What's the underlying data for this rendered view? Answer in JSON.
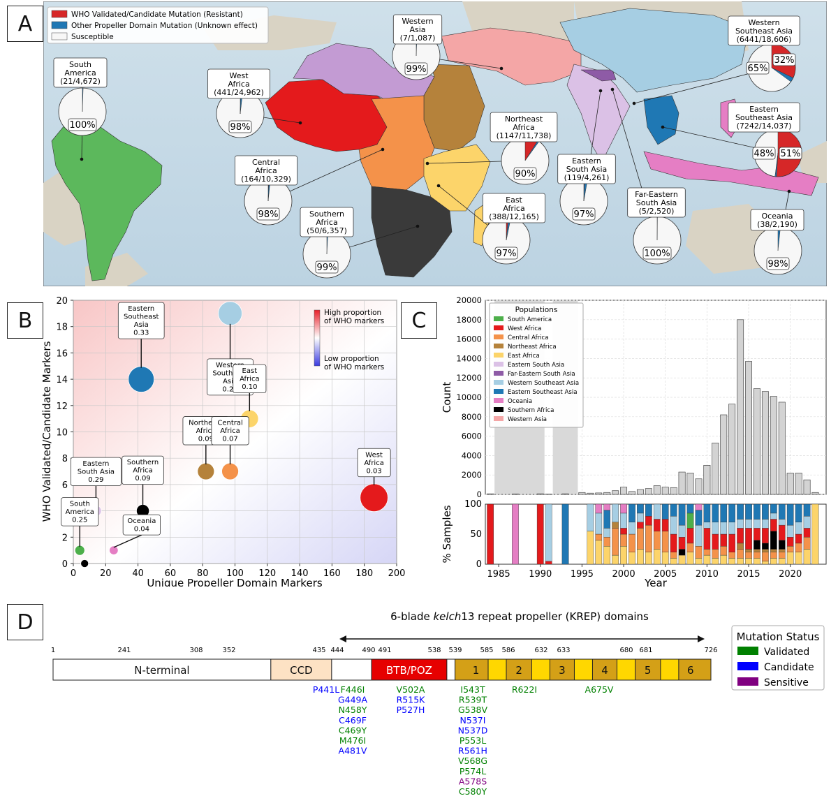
{
  "panels": {
    "a": "A",
    "b": "B",
    "c": "C",
    "d": "D"
  },
  "map": {
    "legend": [
      {
        "label": "WHO Validated/Candidate Mutation (Resistant)",
        "color": "#d62728"
      },
      {
        "label": "Other Propeller Domain Mutation (Unknown effect)",
        "color": "#1f77b4"
      },
      {
        "label": "Susceptible",
        "color": "#f7f7f7"
      }
    ],
    "regions": [
      {
        "name": [
          "South",
          "America"
        ],
        "count": "(21/4,672)",
        "pct": "100%",
        "red": 0.0,
        "blue": 0.005,
        "color": "#4daf4a"
      },
      {
        "name": [
          "West",
          "Africa"
        ],
        "count": "(441/24,962)",
        "pct": "98%",
        "red": 0.003,
        "blue": 0.015,
        "color": "#e41a1c"
      },
      {
        "name": [
          "Western",
          "Asia"
        ],
        "count": "(7/1,087)",
        "pct": "99%",
        "red": 0.0,
        "blue": 0.006,
        "color": "#f4a6a6"
      },
      {
        "name": [
          "Western",
          "Southeast Asia"
        ],
        "count": "(6441/18,606)",
        "pct": "65%",
        "pct2": "32%",
        "red": 0.32,
        "blue": 0.03,
        "color": "#a6cee3"
      },
      {
        "name": [
          "Northeast",
          "Africa"
        ],
        "count": "(1147/11,738)",
        "pct": "90%",
        "red": 0.09,
        "blue": 0.01,
        "color": "#b5823b"
      },
      {
        "name": [
          "Eastern",
          "Southeast Asia"
        ],
        "count": "(7242/14,037)",
        "pct": "48%",
        "pct2": "51%",
        "red": 0.51,
        "blue": 0.01,
        "color": "#1f78b4"
      },
      {
        "name": [
          "Central",
          "Africa"
        ],
        "count": "(164/10,329)",
        "pct": "98%",
        "red": 0.004,
        "blue": 0.012,
        "color": "#f4924a"
      },
      {
        "name": [
          "Eastern",
          "South Asia"
        ],
        "count": "(119/4,261)",
        "pct": "97%",
        "red": 0.005,
        "blue": 0.022,
        "color": "#dbc1e6"
      },
      {
        "name": [
          "Southern",
          "Africa"
        ],
        "count": "(50/6,357)",
        "pct": "99%",
        "red": 0.0,
        "blue": 0.008,
        "color": "#3a3a3a"
      },
      {
        "name": [
          "East",
          "Africa"
        ],
        "count": "(388/12,165)",
        "pct": "97%",
        "red": 0.015,
        "blue": 0.017,
        "color": "#fcd46a"
      },
      {
        "name": [
          "Far-Eastern",
          "South Asia"
        ],
        "count": "(5/2,520)",
        "pct": "100%",
        "red": 0.0,
        "blue": 0.002,
        "color": "#8e5ba6"
      },
      {
        "name": [
          "Oceania"
        ],
        "count": "(38/2,190)",
        "pct": "98%",
        "red": 0.0,
        "blue": 0.017,
        "color": "#e57ec4"
      }
    ]
  },
  "chart_data": [
    {
      "type": "scatter",
      "xlabel": "Unique Propeller Domain Markers",
      "ylabel": "WHO Validated/Candidate Markers",
      "xlim": [
        0,
        200
      ],
      "ylim": [
        0,
        20
      ],
      "xticks": [
        0,
        20,
        40,
        60,
        80,
        100,
        120,
        140,
        160,
        180,
        200
      ],
      "yticks": [
        0,
        2,
        4,
        6,
        8,
        10,
        12,
        14,
        16,
        18,
        20
      ],
      "colorbar": {
        "high": "High proportion of WHO markers",
        "low": "Low proportion of WHO markers"
      },
      "points": [
        {
          "name": [
            "Eastern",
            "Southeast",
            "Asia"
          ],
          "value": "0.33",
          "x": 42,
          "y": 14,
          "size": 23,
          "color": "#1f78b4"
        },
        {
          "name": [
            "Western",
            "Southeast",
            "Asia"
          ],
          "value": "0.20",
          "x": 97,
          "y": 19,
          "size": 21,
          "color": "#a6cee3"
        },
        {
          "name": [
            "East",
            "Africa"
          ],
          "value": "0.10",
          "x": 109,
          "y": 11,
          "size": 15,
          "color": "#fcd46a"
        },
        {
          "name": [
            "Northeast",
            "Africa"
          ],
          "value": "0.09",
          "x": 82,
          "y": 7,
          "size": 14,
          "color": "#b5823b"
        },
        {
          "name": [
            "Central",
            "Africa"
          ],
          "value": "0.07",
          "x": 97,
          "y": 7,
          "size": 14,
          "color": "#f4924a"
        },
        {
          "name": [
            "West",
            "Africa"
          ],
          "value": "0.03",
          "x": 186,
          "y": 5,
          "size": 25,
          "color": "#e41a1c"
        },
        {
          "name": [
            "Eastern",
            "South Asia"
          ],
          "value": "0.29",
          "x": 14,
          "y": 4,
          "size": 8,
          "color": "#dbc1e6"
        },
        {
          "name": [
            "Southern",
            "Africa"
          ],
          "value": "0.09",
          "x": 43,
          "y": 4,
          "size": 10,
          "color": "#000000"
        },
        {
          "name": [
            "South",
            "America"
          ],
          "value": "0.25",
          "x": 4,
          "y": 1,
          "size": 7,
          "color": "#4daf4a"
        },
        {
          "name": [
            "Oceania"
          ],
          "value": "0.04",
          "x": 25,
          "y": 1,
          "size": 6,
          "color": "#e57ec4"
        },
        {
          "name": [],
          "value": "",
          "x": 7,
          "y": 0,
          "size": 5,
          "color": "#000000"
        }
      ]
    },
    {
      "type": "bar",
      "ylabel": "Count",
      "ylim": [
        0,
        20000
      ],
      "yticks": [
        0,
        2000,
        4000,
        6000,
        8000,
        10000,
        12000,
        14000,
        16000,
        18000,
        20000
      ],
      "xlabel": "Year",
      "xticks": [
        1985,
        1990,
        1995,
        2000,
        2005,
        2010,
        2015,
        2020
      ],
      "years": [
        1984,
        1985,
        1986,
        1987,
        1988,
        1989,
        1990,
        1991,
        1992,
        1993,
        1994,
        1995,
        1996,
        1997,
        1998,
        1999,
        2000,
        2001,
        2002,
        2003,
        2004,
        2005,
        2006,
        2007,
        2008,
        2009,
        2010,
        2011,
        2012,
        2013,
        2014,
        2015,
        2016,
        2017,
        2018,
        2019,
        2020,
        2021,
        2022,
        2023
      ],
      "values": [
        60,
        0,
        0,
        40,
        0,
        0,
        60,
        30,
        0,
        60,
        0,
        200,
        130,
        150,
        200,
        380,
        750,
        300,
        500,
        600,
        900,
        750,
        700,
        2300,
        2200,
        1600,
        3000,
        5300,
        8200,
        9300,
        18000,
        13700,
        10900,
        10600,
        10100,
        9500,
        2200,
        2200,
        1500,
        200
      ],
      "shaded_years": [
        [
          1984.5,
          1990.5
        ],
        [
          1991.5,
          1994.5
        ]
      ],
      "legend_title": "Populations",
      "populations": [
        {
          "name": "South America",
          "color": "#4daf4a"
        },
        {
          "name": "West Africa",
          "color": "#e41a1c"
        },
        {
          "name": "Central Africa",
          "color": "#f4924a"
        },
        {
          "name": "Northeast Africa",
          "color": "#b5823b"
        },
        {
          "name": "East Africa",
          "color": "#fcd46a"
        },
        {
          "name": "Eastern South Asia",
          "color": "#dbc1e6"
        },
        {
          "name": "Far-Eastern South Asia",
          "color": "#8e5ba6"
        },
        {
          "name": "Western Southeast Asia",
          "color": "#a6cee3"
        },
        {
          "name": "Eastern Southeast Asia",
          "color": "#1f78b4"
        },
        {
          "name": "Oceania",
          "color": "#e57ec4"
        },
        {
          "name": "Southern Africa",
          "color": "#000000"
        },
        {
          "name": "Western Asia",
          "color": "#f4a6a6"
        }
      ]
    },
    {
      "type": "bar",
      "stacked": true,
      "ylabel": "% Samples",
      "ylim": [
        0,
        100
      ],
      "yticks": [
        0,
        50,
        100
      ],
      "years": [
        1984,
        1987,
        1990,
        1991,
        1993,
        1996,
        1997,
        1998,
        1999,
        2000,
        2001,
        2002,
        2003,
        2004,
        2005,
        2006,
        2007,
        2008,
        2009,
        2010,
        2011,
        2012,
        2013,
        2014,
        2015,
        2016,
        2017,
        2018,
        2019,
        2020,
        2021,
        2022,
        2023
      ],
      "shares": [
        {
          "West Africa": 100
        },
        {
          "Oceania": 100
        },
        {
          "West Africa": 100
        },
        {
          "West Africa": 5,
          "Western Southeast Asia": 95
        },
        {
          "Eastern Southeast Asia": 100
        },
        {
          "East Africa": 55,
          "Western Southeast Asia": 45
        },
        {
          "East Africa": 40,
          "Central Africa": 10,
          "Western Southeast Asia": 35,
          "Oceania": 15
        },
        {
          "East Africa": 30,
          "Central Africa": 15,
          "Eastern Southeast Asia": 30,
          "Western Southeast Asia": 15,
          "Oceania": 10
        },
        {
          "East Africa": 15,
          "Central Africa": 45,
          "Northeast Africa": 10,
          "Western Southeast Asia": 30
        },
        {
          "East Africa": 30,
          "Central Africa": 20,
          "West Africa": 10,
          "Western Southeast Asia": 25,
          "Oceania": 15
        },
        {
          "East Africa": 20,
          "Central Africa": 30,
          "Eastern Southeast Asia": 30,
          "Western Southeast Asia": 20
        },
        {
          "East Africa": 25,
          "Central Africa": 35,
          "West Africa": 10,
          "Western Southeast Asia": 15,
          "Eastern Southeast Asia": 15
        },
        {
          "East Africa": 20,
          "Central Africa": 45,
          "West Africa": 15,
          "Eastern Southeast Asia": 20
        },
        {
          "East Africa": 25,
          "Central Africa": 30,
          "West Africa": 20,
          "Western Southeast Asia": 25
        },
        {
          "East Africa": 20,
          "Central Africa": 35,
          "West Africa": 20,
          "Eastern Southeast Asia": 25
        },
        {
          "East Africa": 10,
          "Central Africa": 10,
          "West Africa": 30,
          "Western Southeast Asia": 30,
          "Eastern Southeast Asia": 20
        },
        {
          "East Africa": 15,
          "Southern Africa": 10,
          "West Africa": 20,
          "Eastern Southeast Asia": 35,
          "Western Southeast Asia": 20
        },
        {
          "East Africa": 20,
          "Central Africa": 15,
          "West Africa": 25,
          "Eastern Southeast Asia": 15,
          "South America": 25
        },
        {
          "East Africa": 10,
          "Central Africa": 20,
          "Western Southeast Asia": 35,
          "Eastern Southeast Asia": 25,
          "Oceania": 10
        },
        {
          "East Africa": 15,
          "Central Africa": 10,
          "West Africa": 35,
          "Eastern Southeast Asia": 30,
          "Western Southeast Asia": 10
        },
        {
          "East Africa": 10,
          "Central Africa": 15,
          "West Africa": 25,
          "Eastern Southeast Asia": 30,
          "Western Southeast Asia": 20
        },
        {
          "East Africa": 15,
          "Central Africa": 15,
          "West Africa": 20,
          "Eastern Southeast Asia": 30,
          "Western Southeast Asia": 20
        },
        {
          "East Africa": 10,
          "Central Africa": 10,
          "West Africa": 30,
          "Eastern Southeast Asia": 30,
          "Western Southeast Asia": 20
        },
        {
          "East Africa": 10,
          "Central Africa": 15,
          "Northeast Africa": 10,
          "West Africa": 25,
          "Eastern Southeast Asia": 25,
          "Western Southeast Asia": 15
        },
        {
          "East Africa": 10,
          "Central Africa": 10,
          "Northeast Africa": 5,
          "West Africa": 35,
          "Eastern Southeast Asia": 25,
          "Western Southeast Asia": 15
        },
        {
          "East Africa": 10,
          "Central Africa": 10,
          "Northeast Africa": 5,
          "West Africa": 20,
          "Southern Africa": 15,
          "Eastern Southeast Asia": 25,
          "Western Southeast Asia": 15
        },
        {
          "East Africa": 5,
          "Central Africa": 15,
          "Northeast Africa": 5,
          "West Africa": 25,
          "Southern Africa": 10,
          "Eastern Southeast Asia": 25,
          "Western Southeast Asia": 15
        },
        {
          "East Africa": 10,
          "Central Africa": 10,
          "Northeast Africa": 5,
          "West Africa": 20,
          "Southern Africa": 30,
          "Eastern Southeast Asia": 15,
          "Western Southeast Asia": 10
        },
        {
          "East Africa": 10,
          "Central Africa": 10,
          "Northeast Africa": 5,
          "West Africa": 25,
          "Southern Africa": 15,
          "Eastern Southeast Asia": 25,
          "Western Southeast Asia": 10
        },
        {
          "East Africa": 20,
          "Central Africa": 10,
          "West Africa": 15,
          "Eastern Southeast Asia": 35,
          "Western Southeast Asia": 20
        },
        {
          "East Africa": 20,
          "Central Africa": 15,
          "West Africa": 15,
          "Eastern Southeast Asia": 30,
          "Western Southeast Asia": 20
        },
        {
          "East Africa": 25,
          "Central Africa": 20,
          "West Africa": 15,
          "Eastern Southeast Asia": 20,
          "Western Southeast Asia": 20
        },
        {
          "East Africa": 100
        }
      ]
    }
  ],
  "domain": {
    "title_prefix": "6-blade ",
    "title_italic": "kelch",
    "title_suffix": "13 repeat propeller (KREP) domains",
    "positions": [
      "1",
      "241",
      "308",
      "352",
      "435",
      "444",
      "490",
      "491",
      "538",
      "539",
      "585",
      "586",
      "632",
      "633",
      "680",
      "681",
      "726"
    ],
    "segments": [
      {
        "label": "N-terminal",
        "start": 1,
        "end": 241,
        "color": "#ffffff"
      },
      {
        "label": "CCD",
        "start": 241,
        "end": 308,
        "color": "#fde2c4"
      },
      {
        "label": "",
        "start": 308,
        "end": 352,
        "color": "#ffffff"
      },
      {
        "label": "BTB/POZ",
        "start": 352,
        "end": 435,
        "color": "#e60000"
      },
      {
        "label": "",
        "start": 435,
        "end": 444,
        "color": "#ffffff"
      },
      {
        "label": "1",
        "start": 444,
        "end": 490,
        "color": "#d4a017"
      },
      {
        "label": "",
        "start": 490,
        "end": 491,
        "color": "#ffd700"
      },
      {
        "label": "2",
        "start": 491,
        "end": 538,
        "color": "#d4a017"
      },
      {
        "label": "",
        "start": 538,
        "end": 539,
        "color": "#ffd700"
      },
      {
        "label": "3",
        "start": 539,
        "end": 585,
        "color": "#d4a017"
      },
      {
        "label": "",
        "start": 585,
        "end": 586,
        "color": "#ffd700"
      },
      {
        "label": "4",
        "start": 586,
        "end": 632,
        "color": "#d4a017"
      },
      {
        "label": "",
        "start": 632,
        "end": 633,
        "color": "#ffd700"
      },
      {
        "label": "5",
        "start": 633,
        "end": 680,
        "color": "#d4a017"
      },
      {
        "label": "",
        "start": 680,
        "end": 681,
        "color": "#ffd700"
      },
      {
        "label": "6",
        "start": 681,
        "end": 726,
        "color": "#d4a017"
      }
    ],
    "legend_title": "Mutation Status",
    "legend": [
      {
        "label": "Validated",
        "color": "#008000"
      },
      {
        "label": "Candidate",
        "color": "#0000ff"
      },
      {
        "label": "Sensitive",
        "color": "#800080"
      }
    ],
    "mutation_columns": [
      {
        "anchor": "p441",
        "items": [
          {
            "t": "P441L",
            "s": "Candidate"
          }
        ]
      },
      {
        "anchor": "b1",
        "items": [
          {
            "t": "F446I",
            "s": "Validated"
          },
          {
            "t": "G449A",
            "s": "Candidate"
          },
          {
            "t": "N458Y",
            "s": "Validated"
          },
          {
            "t": "C469F",
            "s": "Candidate"
          },
          {
            "t": "C469Y",
            "s": "Validated"
          },
          {
            "t": "M476I",
            "s": "Validated"
          },
          {
            "t": "A481V",
            "s": "Candidate"
          }
        ]
      },
      {
        "anchor": "b2",
        "items": [
          {
            "t": "V502A",
            "s": "Validated"
          },
          {
            "t": "R515K",
            "s": "Candidate"
          },
          {
            "t": "P527H",
            "s": "Candidate"
          }
        ]
      },
      {
        "anchor": "b3",
        "items": [
          {
            "t": "I543T",
            "s": "Validated"
          },
          {
            "t": "R539T",
            "s": "Validated"
          },
          {
            "t": "G538V",
            "s": "Validated"
          },
          {
            "t": "N537I",
            "s": "Candidate"
          },
          {
            "t": "N537D",
            "s": "Candidate"
          },
          {
            "t": "P553L",
            "s": "Validated"
          },
          {
            "t": "R561H",
            "s": "Candidate"
          },
          {
            "t": "V568G",
            "s": "Validated"
          },
          {
            "t": "P574L",
            "s": "Validated"
          },
          {
            "t": "A578S",
            "s": "Sensitive"
          },
          {
            "t": "C580Y",
            "s": "Validated"
          }
        ]
      },
      {
        "anchor": "b4",
        "items": [
          {
            "t": "R622I",
            "s": "Validated"
          }
        ]
      },
      {
        "anchor": "b5",
        "items": [
          {
            "t": "A675V",
            "s": "Validated"
          }
        ]
      }
    ]
  }
}
